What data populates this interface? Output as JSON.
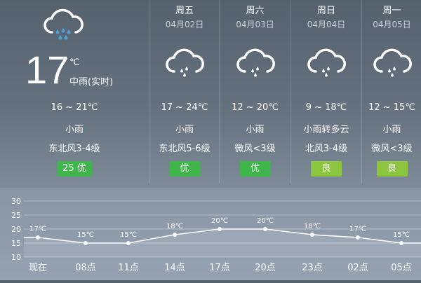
{
  "colors": {
    "good": "#3fb54b",
    "fair": "#8cc63f"
  },
  "today": {
    "icon": "moderate-rain-icon",
    "temp": "17",
    "unit": "℃",
    "condition_now": "中雨(实时)",
    "range": "16 ~ 21℃",
    "weather": "小雨",
    "wind": "东北风3-4级",
    "aqi": "25 优",
    "aqi_level": "good"
  },
  "days": [
    {
      "name": "周五",
      "date": "04月02日",
      "icon": "light-rain-icon",
      "range": "17 ~ 24℃",
      "weather": "小雨",
      "wind": "东北风5-6级",
      "aqi": "优",
      "aqi_level": "good"
    },
    {
      "name": "周六",
      "date": "04月03日",
      "icon": "light-rain-icon",
      "range": "12 ~ 20℃",
      "weather": "小雨",
      "wind": "微风<3级",
      "aqi": "优",
      "aqi_level": "good"
    },
    {
      "name": "周日",
      "date": "04月04日",
      "icon": "light-rain-icon",
      "range": "9 ~ 18℃",
      "weather": "小雨转多云",
      "wind": "北风3-4级",
      "aqi": "良",
      "aqi_level": "fair"
    },
    {
      "name": "周一",
      "date": "04月05日",
      "icon": "light-rain-icon",
      "range": "12 ~ 15℃",
      "weather": "小雨",
      "wind": "微风<3级",
      "aqi": "良",
      "aqi_level": "fair"
    }
  ],
  "chart_data": {
    "type": "line",
    "categories": [
      "现在",
      "08点",
      "11点",
      "14点",
      "17点",
      "20点",
      "23点",
      "02点",
      "05点"
    ],
    "values": [
      17,
      15,
      15,
      18,
      20,
      20,
      18,
      17,
      15
    ],
    "labels": [
      "17℃",
      "15℃",
      "15℃",
      "18℃",
      "20℃",
      "20℃",
      "18℃",
      "17℃",
      "15℃"
    ],
    "yticks": [
      30,
      25,
      20,
      15,
      10
    ],
    "ylim": [
      10,
      30
    ],
    "grid": true
  }
}
